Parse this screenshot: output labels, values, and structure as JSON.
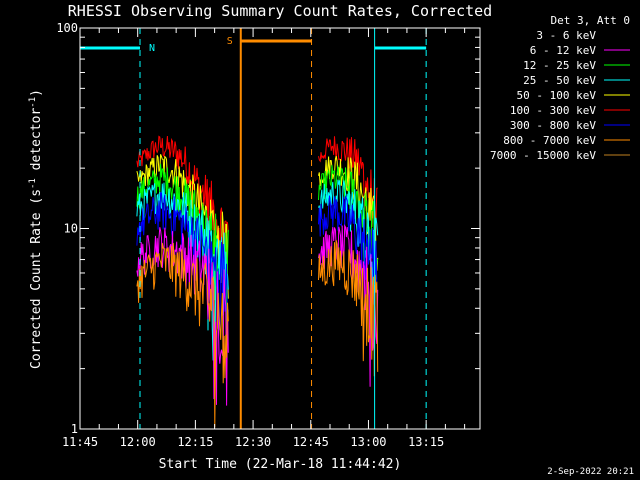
{
  "chart_data": {
    "type": "line",
    "title": "RHESSI Observing Summary Count Rates, Corrected",
    "xlabel": "Start Time (22-Mar-18 11:44:42)",
    "ylabel_main": "Corrected Count Rate (s",
    "ylabel_sup1": "-1",
    "ylabel_mid": " detector",
    "ylabel_sup2": "-1",
    "ylabel_end": ")",
    "yscale": "log",
    "ylim": [
      1,
      100
    ],
    "yticks": [
      {
        "value": 1,
        "label": "1"
      },
      {
        "value": 10,
        "label": "10"
      },
      {
        "value": 100,
        "label": "100"
      }
    ],
    "xlim_minutes": [
      705,
      1338
    ],
    "xticks": [
      {
        "value": 705,
        "label": "11:45"
      },
      {
        "value": 720,
        "label": "12:00"
      },
      {
        "value": 735,
        "label": "12:15"
      },
      {
        "value": 750,
        "label": "12:30"
      },
      {
        "value": 765,
        "label": "12:45"
      },
      {
        "value": 780,
        "label": "13:00"
      },
      {
        "value": 795,
        "label": "13:15"
      }
    ],
    "legend": {
      "placement": "right",
      "header": "Det 3, Att 0",
      "entries": [
        {
          "label": "3 - 6 keV",
          "color": "#000000"
        },
        {
          "label": "6 - 12 keV",
          "color": "#ff00ff"
        },
        {
          "label": "12 - 25 keV",
          "color": "#00ff00"
        },
        {
          "label": "25 - 50 keV",
          "color": "#00ffff"
        },
        {
          "label": "50 - 100 keV",
          "color": "#ffff00"
        },
        {
          "label": "100 - 300 keV",
          "color": "#ff0000"
        },
        {
          "label": "300 - 800 keV",
          "color": "#0000ff"
        },
        {
          "label": "800 - 7000 keV",
          "color": "#ff8c00"
        },
        {
          "label": "7000 - 15000 keV",
          "color": "#c08020"
        }
      ]
    },
    "series": [
      {
        "name": "100 - 300 keV",
        "color": "#ff0000",
        "segments": [
          {
            "x": [
              719.8,
              722,
              724,
              726,
              728,
              730,
              732,
              734,
              736,
              738,
              740,
              742,
              743.6
            ],
            "y": [
              21,
              23,
              25,
              26,
              25,
              24,
              22,
              19,
              16,
              14,
              12,
              10,
              9
            ]
          },
          {
            "x": [
              767,
              769,
              771,
              773,
              775,
              777,
              779,
              781,
              782.5
            ],
            "y": [
              22,
              25,
              26,
              25,
              24,
              22,
              18,
              14,
              11
            ]
          }
        ]
      },
      {
        "name": "50 - 100 keV",
        "color": "#ffff00",
        "segments": [
          {
            "x": [
              719.8,
              722,
              724,
              726,
              728,
              730,
              732,
              734,
              736,
              738,
              740,
              742,
              743.6
            ],
            "y": [
              17,
              18.5,
              20,
              21,
              20,
              19,
              17,
              15,
              13,
              11,
              9.5,
              8.5,
              7.5
            ]
          },
          {
            "x": [
              767,
              769,
              771,
              773,
              775,
              777,
              779,
              781,
              782.5
            ],
            "y": [
              18,
              20,
              21,
              20,
              19,
              17,
              14,
              11,
              9
            ]
          }
        ]
      },
      {
        "name": "12 - 25 keV",
        "color": "#00ff00",
        "segments": [
          {
            "x": [
              719.8,
              722,
              724,
              726,
              728,
              730,
              732,
              734,
              736,
              738,
              740,
              742,
              743.6
            ],
            "y": [
              14.5,
              16,
              17,
              18,
              17,
              16,
              14.5,
              13,
              11.5,
              10,
              8.5,
              7.5,
              7
            ]
          },
          {
            "x": [
              767,
              769,
              771,
              773,
              775,
              777,
              779,
              781,
              782.5
            ],
            "y": [
              15.5,
              17,
              18,
              17,
              16,
              14.5,
              12,
              10,
              8
            ]
          }
        ]
      },
      {
        "name": "25 - 50 keV",
        "color": "#00ffff",
        "segments": [
          {
            "x": [
              719.8,
              722,
              724,
              726,
              728,
              730,
              732,
              734,
              736,
              738,
              740,
              742,
              743.6
            ],
            "y": [
              12.5,
              13.5,
              14.5,
              15,
              14.5,
              13.5,
              12.5,
              11,
              10,
              9,
              7.5,
              7,
              6.5
            ]
          },
          {
            "x": [
              767,
              769,
              771,
              773,
              775,
              777,
              779,
              781,
              782.5
            ],
            "y": [
              13,
              14.5,
              15,
              14.5,
              13.5,
              12,
              10.5,
              9,
              7
            ]
          }
        ]
      },
      {
        "name": "300 - 800 keV",
        "color": "#0000ff",
        "segments": [
          {
            "x": [
              719.8,
              722,
              724,
              726,
              728,
              730,
              732,
              734,
              736,
              738,
              740,
              742,
              743.6
            ],
            "y": [
              10,
              11,
              12,
              12.5,
              12,
              11.5,
              10.5,
              9.5,
              8.5,
              7.5,
              6.5,
              6,
              5.5
            ]
          },
          {
            "x": [
              767,
              769,
              771,
              773,
              775,
              777,
              779,
              781,
              782.5
            ],
            "y": [
              11,
              12,
              12.5,
              12,
              11,
              10,
              8.5,
              7.5,
              6
            ]
          }
        ]
      },
      {
        "name": "6 - 12 keV",
        "color": "#ff00ff",
        "segments": [
          {
            "x": [
              719.8,
              722,
              724,
              726,
              728,
              730,
              732,
              734,
              736,
              738,
              740,
              742,
              743.6
            ],
            "y": [
              7,
              7.5,
              8,
              8.5,
              8,
              7.8,
              7.5,
              7,
              6.5,
              6,
              5.2,
              4.6,
              4.2
            ]
          },
          {
            "x": [
              767,
              769,
              771,
              773,
              775,
              777,
              779,
              781,
              782.5
            ],
            "y": [
              7.5,
              8,
              8.5,
              8.2,
              7.8,
              7,
              6,
              5,
              4
            ]
          }
        ]
      },
      {
        "name": "800 - 7000 keV",
        "color": "#ff8c00",
        "segments": [
          {
            "x": [
              719.8,
              722,
              724,
              726,
              728,
              730,
              732,
              734,
              736,
              738,
              740,
              742,
              743.6
            ],
            "y": [
              5.5,
              6,
              6.5,
              7,
              6.8,
              6.4,
              6,
              5.5,
              5,
              4.6,
              4,
              3.6,
              3.2
            ]
          },
          {
            "x": [
              767,
              769,
              771,
              773,
              775,
              777,
              779,
              781,
              782.5
            ],
            "y": [
              6,
              6.5,
              7,
              6.8,
              6.4,
              5.8,
              5,
              4.2,
              3.4
            ]
          }
        ]
      }
    ],
    "annotations": {
      "n_label": "N",
      "s_label": "S",
      "night_color": "#00ffff",
      "saa_color": "#ff8c00",
      "night_bars": [
        [
          705,
          720.6
        ],
        [
          781.6,
          795
        ]
      ],
      "night_solid_lines": [
        705,
        781.6
      ],
      "night_dashed_lines": [
        720.6,
        795
      ],
      "saa_bar": [
        746.8,
        765.2
      ],
      "saa_solid_line": 746.8,
      "saa_dashed_line": 765.2
    },
    "footer_date": "2-Sep-2022 20:21"
  }
}
